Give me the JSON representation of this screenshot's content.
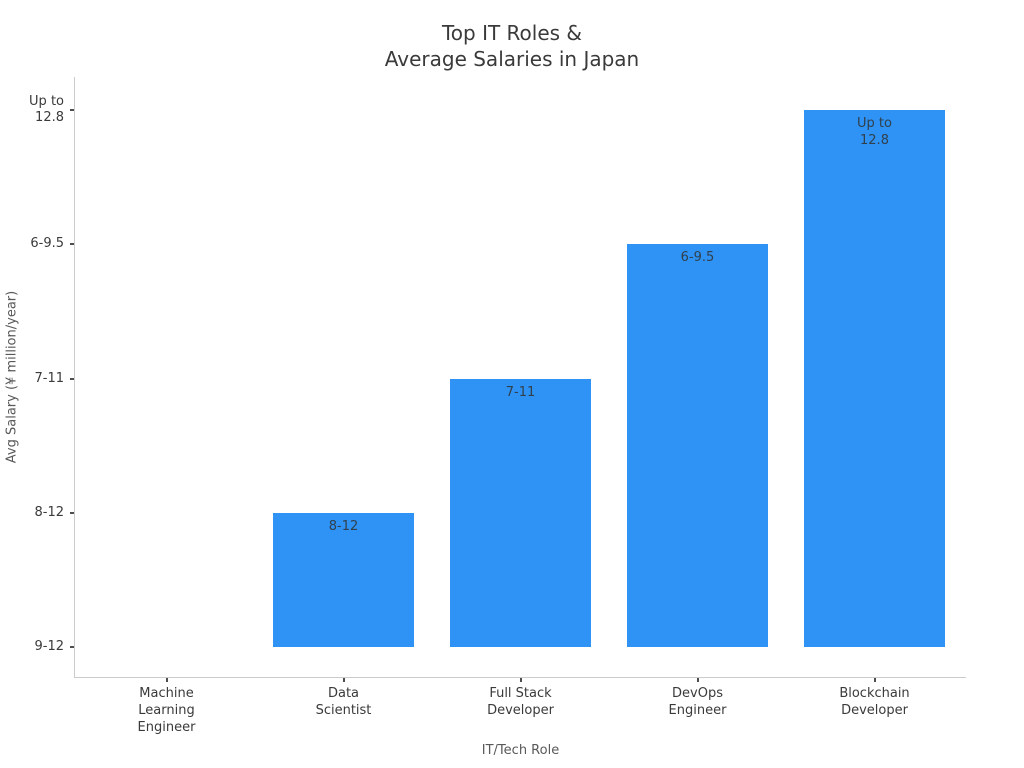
{
  "chart_data": {
    "type": "bar",
    "title": "Top IT Roles &\nAverage Salaries in Japan",
    "xlabel": "IT/Tech Role",
    "ylabel": "Avg Salary (¥ million/year)",
    "categories": [
      "Machine\nLearning\nEngineer",
      "Data\nScientist",
      "Full Stack\nDeveloper",
      "DevOps\nEngineer",
      "Blockchain\nDeveloper"
    ],
    "salary_ranges": [
      "9-12",
      "8-12",
      "7-11",
      "6-9.5",
      "Up to 12.8"
    ],
    "values": [
      0,
      1,
      2,
      3,
      4
    ],
    "bar_value_labels": [
      "",
      "8-12",
      "7-11",
      "6-9.5",
      "Up to\n12.8"
    ],
    "y_tick_values": [
      0,
      1,
      2,
      3,
      4
    ],
    "y_tick_labels": [
      "9-12",
      "8-12",
      "7-11",
      "6-9.5",
      "Up to\n12.8"
    ],
    "ylim": [
      -0.22,
      4.47
    ],
    "grid": false,
    "legend_position": null,
    "bar_color": "#2E93F5"
  },
  "colors": {
    "bar": "#2E93F5",
    "bar_label_text": "#31404d",
    "tick_label_text": "#3a3a3a",
    "axis_label_text": "#595959",
    "title_text": "#3a3a3a",
    "spine": "#cccccc",
    "tick_mark": "#4d4d4d"
  }
}
